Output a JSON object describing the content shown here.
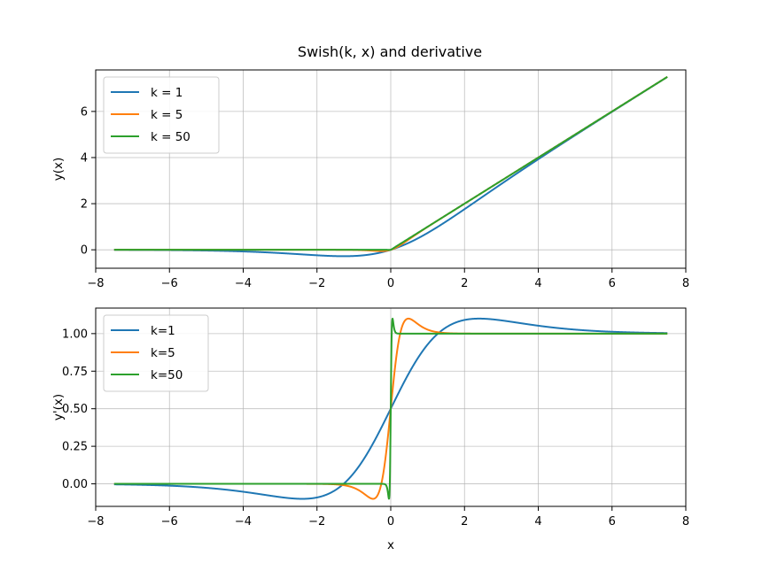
{
  "chart_data": [
    {
      "type": "line",
      "title": "Swish(k, x) and derivative",
      "xlabel": "",
      "ylabel": "y(x)",
      "xlim": [
        -8.0,
        8.0
      ],
      "ylim": [
        -0.8,
        7.8
      ],
      "xticks": [
        -8,
        -6,
        -4,
        -2,
        0,
        2,
        4,
        6,
        8
      ],
      "xtick_labels": [
        "−8",
        "−6",
        "−4",
        "−2",
        "0",
        "2",
        "4",
        "6",
        "8"
      ],
      "yticks": [
        0,
        2,
        4,
        6
      ],
      "ytick_labels": [
        "0",
        "2",
        "4",
        "6"
      ],
      "grid": true,
      "legend": "top-left",
      "x_range": [
        -7.5,
        7.5
      ],
      "series": [
        {
          "name": "k = 1",
          "k": 1,
          "color": "#1f77b4",
          "fn": "swish"
        },
        {
          "name": "k = 5",
          "k": 5,
          "color": "#ff7f0e",
          "fn": "swish"
        },
        {
          "name": "k = 50",
          "k": 50,
          "color": "#2ca02c",
          "fn": "swish"
        }
      ]
    },
    {
      "type": "line",
      "title": "",
      "xlabel": "x",
      "ylabel": "y'(x)",
      "xlim": [
        -8.0,
        8.0
      ],
      "ylim": [
        -0.15,
        1.17
      ],
      "xticks": [
        -8,
        -6,
        -4,
        -2,
        0,
        2,
        4,
        6,
        8
      ],
      "xtick_labels": [
        "−8",
        "−6",
        "−4",
        "−2",
        "0",
        "2",
        "4",
        "6",
        "8"
      ],
      "yticks": [
        0.0,
        0.25,
        0.5,
        0.75,
        1.0
      ],
      "ytick_labels": [
        "0.00",
        "0.25",
        "0.50",
        "0.75",
        "1.00"
      ],
      "grid": true,
      "legend": "top-left",
      "x_range": [
        -7.5,
        7.5
      ],
      "series": [
        {
          "name": "k=1",
          "k": 1,
          "color": "#1f77b4",
          "fn": "swish_derivative"
        },
        {
          "name": "k=5",
          "k": 5,
          "color": "#ff7f0e",
          "fn": "swish_derivative"
        },
        {
          "name": "k=50",
          "k": 50,
          "color": "#2ca02c",
          "fn": "swish_derivative"
        }
      ]
    }
  ]
}
